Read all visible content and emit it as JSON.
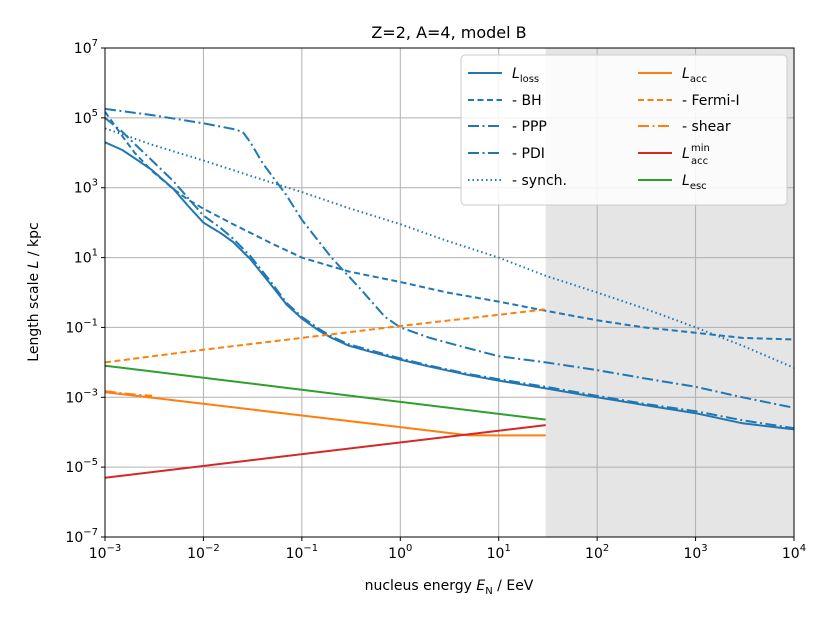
{
  "chart_data": {
    "type": "line",
    "title": "Z=2, A=4, model B",
    "xlabel": {
      "text": "nucleus energy ",
      "var": "E",
      "sub": "N",
      "unit": " / EeV"
    },
    "ylabel": {
      "text": "Length scale ",
      "var": "L",
      "unit": " / kpc"
    },
    "xscale": "log",
    "yscale": "log",
    "xlim": [
      0.001,
      10000
    ],
    "ylim": [
      1e-07,
      10000000.0
    ],
    "x_ticks": [
      {
        "value": 0.001,
        "base": "10",
        "exp": "−3"
      },
      {
        "value": 0.01,
        "base": "10",
        "exp": "−2"
      },
      {
        "value": 0.1,
        "base": "10",
        "exp": "−1"
      },
      {
        "value": 1,
        "base": "10",
        "exp": "0"
      },
      {
        "value": 10,
        "base": "10",
        "exp": "1"
      },
      {
        "value": 100,
        "base": "10",
        "exp": "2"
      },
      {
        "value": 1000,
        "base": "10",
        "exp": "3"
      },
      {
        "value": 10000,
        "base": "10",
        "exp": "4"
      }
    ],
    "y_ticks": [
      {
        "value": 1e-07,
        "base": "10",
        "exp": "−7"
      },
      {
        "value": 1e-05,
        "base": "10",
        "exp": "−5"
      },
      {
        "value": 0.001,
        "base": "10",
        "exp": "−3"
      },
      {
        "value": 0.1,
        "base": "10",
        "exp": "−1"
      },
      {
        "value": 10,
        "base": "10",
        "exp": "1"
      },
      {
        "value": 1000,
        "base": "10",
        "exp": "3"
      },
      {
        "value": 100000,
        "base": "10",
        "exp": "5"
      },
      {
        "value": 10000000,
        "base": "10",
        "exp": "7"
      }
    ],
    "grid": true,
    "shaded_region": {
      "x_from": 30,
      "x_to": 10000,
      "color": "#e5e5e5"
    },
    "legend_position": "top-right",
    "series": [
      {
        "id": "L_loss",
        "label": {
          "var": "L",
          "sub": "loss"
        },
        "color": "#1f77b4",
        "dash": "solid",
        "x": [
          0.001,
          0.0015,
          0.002,
          0.003,
          0.005,
          0.007,
          0.01,
          0.015,
          0.02,
          0.03,
          0.05,
          0.07,
          0.1,
          0.15,
          0.2,
          0.3,
          0.5,
          1,
          2,
          5,
          10,
          30,
          100,
          300,
          1000,
          3000,
          10000
        ],
        "y": [
          20000,
          12000,
          7000,
          3200,
          900,
          300,
          100,
          50,
          28,
          9,
          1.5,
          0.45,
          0.18,
          0.08,
          0.05,
          0.03,
          0.02,
          0.012,
          0.0075,
          0.0043,
          0.003,
          0.0018,
          0.001,
          0.0006,
          0.00035,
          0.00018,
          0.00012
        ]
      },
      {
        "id": "BH",
        "label": {
          "text": "  - BH"
        },
        "color": "#1f77b4",
        "dash": "6 3.5",
        "x": [
          0.001,
          0.0015,
          0.002,
          0.003,
          0.005,
          0.007,
          0.01,
          0.02,
          0.05,
          0.1,
          0.3,
          1,
          3,
          10,
          30,
          100,
          300,
          1000,
          3000,
          10000
        ],
        "y": [
          150000,
          30000,
          10000,
          3000,
          900,
          450,
          250,
          90,
          25,
          10,
          4,
          2,
          1,
          0.55,
          0.3,
          0.16,
          0.1,
          0.07,
          0.05,
          0.045
        ]
      },
      {
        "id": "PPP",
        "label": {
          "text": "  - PPP"
        },
        "color": "#1f77b4",
        "dash": "11 3.5 2 3.5",
        "x": [
          0.001,
          0.003,
          0.01,
          0.02,
          0.025,
          0.03,
          0.04,
          0.07,
          0.1,
          0.2,
          0.4,
          0.7,
          1,
          2,
          5,
          10,
          30,
          100,
          300,
          1000,
          3000,
          10000
        ],
        "y": [
          180000,
          120000,
          70000,
          48000,
          40000,
          20000,
          5000,
          600,
          120,
          10,
          1.2,
          0.2,
          0.1,
          0.05,
          0.025,
          0.015,
          0.01,
          0.006,
          0.0035,
          0.002,
          0.001,
          0.0005
        ]
      },
      {
        "id": "PDI",
        "label": {
          "text": "  - PDI"
        },
        "color": "#1f77b4",
        "dash": "11 3.5 2 3.5",
        "x": [
          0.001,
          0.0015,
          0.002,
          0.003,
          0.005,
          0.007,
          0.01,
          0.015,
          0.02,
          0.03,
          0.05,
          0.07,
          0.1,
          0.15,
          0.2,
          0.3,
          0.5,
          1,
          2,
          5,
          10,
          30,
          100,
          300,
          1000,
          3000,
          10000
        ],
        "y": [
          100000,
          40000,
          18000,
          6000,
          1500,
          500,
          160,
          70,
          35,
          11,
          1.8,
          0.5,
          0.2,
          0.09,
          0.055,
          0.033,
          0.022,
          0.013,
          0.008,
          0.0046,
          0.0033,
          0.002,
          0.0011,
          0.00065,
          0.0004,
          0.00022,
          0.00013
        ]
      },
      {
        "id": "synch",
        "label": {
          "text": "  - synch."
        },
        "color": "#1f77b4",
        "dash": "1.5 3",
        "x": [
          0.001,
          0.003,
          0.01,
          0.03,
          0.1,
          0.3,
          1,
          3,
          10,
          30,
          100,
          300,
          1000,
          3000,
          10000
        ],
        "y": [
          50000,
          17000,
          6000,
          2200,
          750,
          260,
          90,
          30,
          10,
          3,
          1,
          0.35,
          0.1,
          0.03,
          0.007
        ]
      },
      {
        "id": "L_acc",
        "label": {
          "var": "L",
          "sub": "acc"
        },
        "color": "#ff7f0e",
        "dash": "solid",
        "x": [
          0.001,
          0.01,
          0.1,
          1,
          5,
          30
        ],
        "y": [
          0.0014,
          0.00065,
          0.0003,
          0.00014,
          8.1e-05,
          8.1e-05
        ]
      },
      {
        "id": "Fermi-I",
        "label": {
          "text": "  - Fermi-I"
        },
        "color": "#ff7f0e",
        "dash": "6 3.5",
        "x": [
          0.001,
          0.01,
          0.1,
          1,
          10,
          30
        ],
        "y": [
          0.01,
          0.023,
          0.05,
          0.11,
          0.23,
          0.33
        ]
      },
      {
        "id": "shear",
        "label": {
          "text": "  - shear"
        },
        "color": "#ff7f0e",
        "dash": "11 3.5 2 3.5",
        "x": [
          0.001,
          0.0015,
          0.002,
          0.003
        ],
        "y": [
          0.0015,
          0.0013,
          0.0012,
          0.0011
        ]
      },
      {
        "id": "L_acc_min",
        "label": {
          "var": "L",
          "sub": "acc",
          "sup": "min"
        },
        "color": "#d62728",
        "dash": "solid",
        "x": [
          0.001,
          30
        ],
        "y": [
          5e-06,
          0.00016
        ]
      },
      {
        "id": "L_esc",
        "label": {
          "var": "L",
          "sub": "esc"
        },
        "color": "#2ca02c",
        "dash": "solid",
        "x": [
          0.001,
          30
        ],
        "y": [
          0.008,
          0.00023
        ]
      }
    ]
  }
}
